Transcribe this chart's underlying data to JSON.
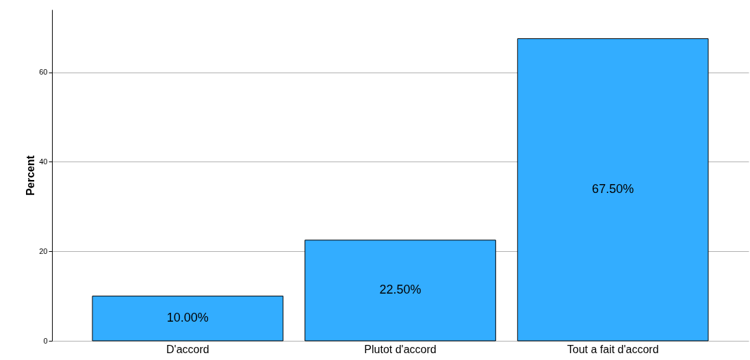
{
  "chart_data": {
    "type": "bar",
    "ylabel": "Percent",
    "categories": [
      "D'accord",
      "Plutot d'accord",
      "Tout a fait d'accord"
    ],
    "values": [
      10,
      22.5,
      67.5
    ],
    "value_labels": [
      "10.00%",
      "22.50%",
      "67.50%"
    ],
    "color": "#33adff",
    "ylim": [
      0,
      74
    ],
    "yticks": [
      0,
      20,
      40,
      60
    ],
    "grid": "y"
  }
}
